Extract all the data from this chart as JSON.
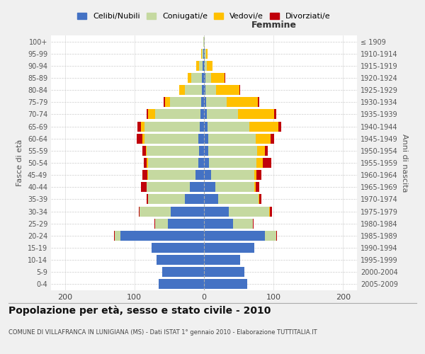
{
  "age_groups": [
    "0-4",
    "5-9",
    "10-14",
    "15-19",
    "20-24",
    "25-29",
    "30-34",
    "35-39",
    "40-44",
    "45-49",
    "50-54",
    "55-59",
    "60-64",
    "65-69",
    "70-74",
    "75-79",
    "80-84",
    "85-89",
    "90-94",
    "95-99",
    "100+"
  ],
  "birth_years": [
    "2005-2009",
    "2000-2004",
    "1995-1999",
    "1990-1994",
    "1985-1989",
    "1980-1984",
    "1975-1979",
    "1970-1974",
    "1965-1969",
    "1960-1964",
    "1955-1959",
    "1950-1954",
    "1945-1949",
    "1940-1944",
    "1935-1939",
    "1930-1934",
    "1925-1929",
    "1920-1924",
    "1915-1919",
    "1910-1914",
    "≤ 1909"
  ],
  "males": {
    "celibi": [
      65,
      60,
      68,
      75,
      120,
      52,
      48,
      28,
      20,
      12,
      8,
      7,
      8,
      6,
      5,
      4,
      3,
      3,
      2,
      1,
      0
    ],
    "coniugati": [
      0,
      0,
      0,
      0,
      8,
      18,
      45,
      52,
      62,
      68,
      72,
      75,
      78,
      80,
      65,
      45,
      25,
      15,
      5,
      2,
      1
    ],
    "vedovi": [
      0,
      0,
      0,
      0,
      0,
      0,
      0,
      0,
      1,
      1,
      2,
      2,
      3,
      5,
      10,
      7,
      8,
      5,
      4,
      1,
      0
    ],
    "divorziati": [
      0,
      0,
      0,
      0,
      1,
      1,
      1,
      3,
      8,
      8,
      5,
      5,
      8,
      5,
      3,
      2,
      0,
      0,
      0,
      0,
      0
    ]
  },
  "females": {
    "nubili": [
      62,
      58,
      52,
      72,
      88,
      42,
      36,
      20,
      16,
      10,
      7,
      6,
      6,
      5,
      4,
      3,
      2,
      2,
      1,
      1,
      0
    ],
    "coniugate": [
      0,
      0,
      0,
      0,
      16,
      28,
      58,
      58,
      56,
      62,
      68,
      70,
      68,
      60,
      45,
      30,
      15,
      8,
      3,
      2,
      1
    ],
    "vedove": [
      0,
      0,
      0,
      0,
      0,
      0,
      1,
      1,
      2,
      3,
      10,
      12,
      22,
      42,
      52,
      44,
      34,
      20,
      8,
      2,
      0
    ],
    "divorziate": [
      0,
      0,
      0,
      0,
      1,
      1,
      3,
      4,
      5,
      8,
      12,
      4,
      5,
      4,
      3,
      2,
      1,
      1,
      0,
      0,
      0
    ]
  },
  "colors": {
    "celibi_nubili": "#4472c4",
    "coniugati": "#c5d9a0",
    "vedovi": "#ffc000",
    "divorziati": "#c0000b"
  },
  "title": "Popolazione per età, sesso e stato civile - 2010",
  "subtitle": "COMUNE DI VILLAFRANCA IN LUNIGIANA (MS) - Dati ISTAT 1° gennaio 2010 - Elaborazione TUTTITALIA.IT",
  "xlabel_right": "Femmine",
  "ylabel_left": "Fasce di età",
  "ylabel_right": "Anni di nascita",
  "xlim": 220,
  "legend_labels": [
    "Celibi/Nubili",
    "Coniugati/e",
    "Vedovi/e",
    "Divorziati/e"
  ],
  "bg_color": "#f0f0f0",
  "plot_bg": "#ffffff"
}
